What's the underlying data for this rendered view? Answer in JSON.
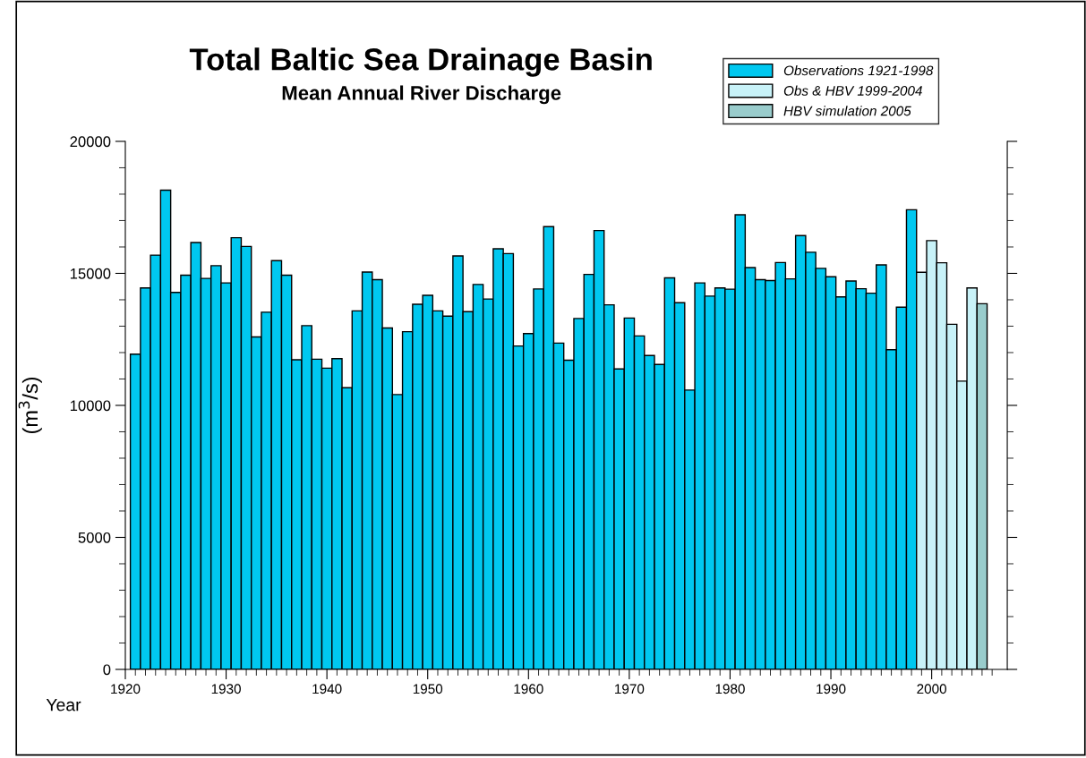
{
  "chart_data": {
    "type": "bar",
    "title": "Total Baltic Sea Drainage Basin",
    "subtitle": "Mean Annual River Discharge",
    "xlabel": "Year",
    "ylabel": "(m$^{3}$/s)",
    "series": [
      {
        "name": "Observations 1921-1998",
        "color": "#00c8f0",
        "x": [
          1921,
          1922,
          1923,
          1924,
          1925,
          1926,
          1927,
          1928,
          1929,
          1930,
          1931,
          1932,
          1933,
          1934,
          1935,
          1936,
          1937,
          1938,
          1939,
          1940,
          1941,
          1942,
          1943,
          1944,
          1945,
          1946,
          1947,
          1948,
          1949,
          1950,
          1951,
          1952,
          1953,
          1954,
          1955,
          1956,
          1957,
          1958,
          1959,
          1960,
          1961,
          1962,
          1963,
          1964,
          1965,
          1966,
          1967,
          1968,
          1969,
          1970,
          1971,
          1972,
          1973,
          1974,
          1975,
          1976,
          1977,
          1978,
          1979,
          1980,
          1981,
          1982,
          1983,
          1984,
          1985,
          1986,
          1987,
          1988,
          1989,
          1990,
          1991,
          1992,
          1993,
          1994,
          1995,
          1996,
          1997,
          1998
        ],
        "values": [
          11940,
          14450,
          15690,
          18150,
          14280,
          14930,
          16170,
          14810,
          15290,
          14640,
          16350,
          16020,
          12590,
          13530,
          15480,
          14930,
          11730,
          13020,
          11750,
          11410,
          11770,
          10670,
          13580,
          15050,
          14760,
          12930,
          10410,
          12790,
          13830,
          14170,
          13580,
          13380,
          15660,
          13550,
          14580,
          14030,
          15930,
          15750,
          12250,
          12720,
          14410,
          16770,
          12360,
          11710,
          13290,
          14960,
          16620,
          13810,
          11380,
          13310,
          12630,
          11890,
          11550,
          14830,
          13890,
          10580,
          14640,
          14140,
          14450,
          14400,
          17220,
          15220,
          14760,
          14730,
          15410,
          14790,
          16430,
          15800,
          15190,
          14870,
          14110,
          14710,
          14420,
          14250,
          15320,
          12110,
          13720,
          17410
        ]
      },
      {
        "name": "Obs & HBV 1999-2004",
        "color": "#c8f2f8",
        "x": [
          1999,
          2000,
          2001,
          2002,
          2003,
          2004
        ],
        "values": [
          15040,
          16240,
          15400,
          13070,
          10920,
          14450
        ]
      },
      {
        "name": "HBV simulation 2005",
        "color": "#99cccc",
        "x": [
          2005
        ],
        "values": [
          13850
        ]
      }
    ],
    "xlim": [
      1920,
      2007.5
    ],
    "ylim": [
      0,
      20000
    ],
    "xticks": [
      1920,
      {
        "value": 1921,
        "label": null
      },
      {
        "value": 1922,
        "label": null
      },
      {
        "value": 1923,
        "label": null
      },
      {
        "value": 1924,
        "label": null
      },
      {
        "value": 1925,
        "label": null
      },
      {
        "value": 1926,
        "label": null
      },
      {
        "value": 1927,
        "label": null
      },
      {
        "value": 1928,
        "label": null
      },
      {
        "value": 1929,
        "label": null
      },
      1930,
      {
        "value": 1931,
        "label": null
      },
      {
        "value": 1932,
        "label": null
      },
      {
        "value": 1933,
        "label": null
      },
      {
        "value": 1934,
        "label": null
      },
      {
        "value": 1935,
        "label": null
      },
      {
        "value": 1936,
        "label": null
      },
      {
        "value": 1937,
        "label": null
      },
      {
        "value": 1938,
        "label": null
      },
      {
        "value": 1939,
        "label": null
      },
      1940,
      {
        "value": 1941,
        "label": null
      },
      {
        "value": 1942,
        "label": null
      },
      {
        "value": 1943,
        "label": null
      },
      {
        "value": 1944,
        "label": null
      },
      {
        "value": 1945,
        "label": null
      },
      {
        "value": 1946,
        "label": null
      },
      {
        "value": 1947,
        "label": null
      },
      {
        "value": 1948,
        "label": null
      },
      {
        "value": 1949,
        "label": null
      },
      1950,
      {
        "value": 1951,
        "label": null
      },
      {
        "value": 1952,
        "label": null
      },
      {
        "value": 1953,
        "label": null
      },
      {
        "value": 1954,
        "label": null
      },
      {
        "value": 1955,
        "label": null
      },
      {
        "value": 1956,
        "label": null
      },
      {
        "value": 1957,
        "label": null
      },
      {
        "value": 1958,
        "label": null
      },
      {
        "value": 1959,
        "label": null
      },
      1960,
      {
        "value": 1961,
        "label": null
      },
      {
        "value": 1962,
        "label": null
      },
      {
        "value": 1963,
        "label": null
      },
      {
        "value": 1964,
        "label": null
      },
      {
        "value": 1965,
        "label": null
      },
      {
        "value": 1966,
        "label": null
      },
      {
        "value": 1967,
        "label": null
      },
      {
        "value": 1968,
        "label": null
      },
      {
        "value": 1969,
        "label": null
      },
      1970,
      {
        "value": 1971,
        "label": null
      },
      {
        "value": 1972,
        "label": null
      },
      {
        "value": 1973,
        "label": null
      },
      {
        "value": 1974,
        "label": null
      },
      {
        "value": 1975,
        "label": null
      },
      {
        "value": 1976,
        "label": null
      },
      {
        "value": 1977,
        "label": null
      },
      {
        "value": 1978,
        "label": null
      },
      {
        "value": 1979,
        "label": null
      },
      1980,
      {
        "value": 1981,
        "label": null
      },
      {
        "value": 1982,
        "label": null
      },
      {
        "value": 1983,
        "label": null
      },
      {
        "value": 1984,
        "label": null
      },
      {
        "value": 1985,
        "label": null
      },
      {
        "value": 1986,
        "label": null
      },
      {
        "value": 1987,
        "label": null
      },
      {
        "value": 1988,
        "label": null
      },
      {
        "value": 1989,
        "label": null
      },
      1990,
      {
        "value": 1991,
        "label": null
      },
      {
        "value": 1992,
        "label": null
      },
      {
        "value": 1993,
        "label": null
      },
      {
        "value": 1994,
        "label": null
      },
      {
        "value": 1995,
        "label": null
      },
      {
        "value": 1996,
        "label": null
      },
      {
        "value": 1997,
        "label": null
      },
      {
        "value": 1998,
        "label": null
      },
      {
        "value": 1999,
        "label": null
      },
      2000,
      {
        "value": 2001,
        "label": null
      },
      {
        "value": 2002,
        "label": null
      },
      {
        "value": 2003,
        "label": null
      },
      {
        "value": 2004,
        "label": null
      },
      {
        "value": 2005,
        "label": null
      },
      {
        "value": 2006,
        "label": null
      }
    ],
    "yticks": [
      0,
      {
        "value": 1000,
        "label": null
      },
      {
        "value": 2000,
        "label": null
      },
      {
        "value": 3000,
        "label": null
      },
      {
        "value": 4000,
        "label": null
      },
      5000,
      {
        "value": 6000,
        "label": null
      },
      {
        "value": 7000,
        "label": null
      },
      {
        "value": 8000,
        "label": null
      },
      {
        "value": 9000,
        "label": null
      },
      10000,
      {
        "value": 11000,
        "label": null
      },
      {
        "value": 12000,
        "label": null
      },
      {
        "value": 13000,
        "label": null
      },
      {
        "value": 14000,
        "label": null
      },
      15000,
      {
        "value": 16000,
        "label": null
      },
      {
        "value": 17000,
        "label": null
      },
      {
        "value": 18000,
        "label": null
      },
      {
        "value": 19000,
        "label": null
      },
      20000
    ],
    "grid": false,
    "legend": "top right"
  }
}
